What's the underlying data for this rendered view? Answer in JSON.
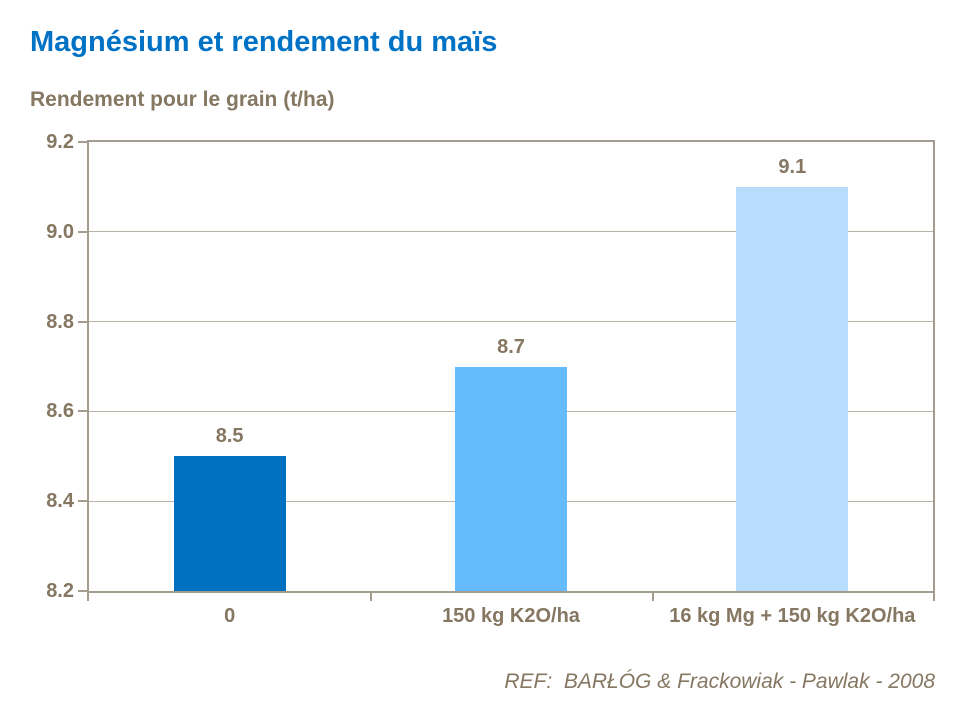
{
  "header": {
    "title": "Magnésium et rendement du maïs",
    "subtitle": "Rendement pour le grain (t/ha)"
  },
  "footer": {
    "reference": "REF:  BARŁÓG & Frackowiak - Pawlak - 2008"
  },
  "colors": {
    "title_blue": "#0072C6",
    "text_brown": "#857761",
    "axis_border": "#A59C90",
    "gridline": "#BCB3A8",
    "bar_dark_blue": "#0070C0",
    "bar_medium_blue": "#66BBFC",
    "bar_light_blue": "#B8DCFC",
    "background": "#FFFFFF"
  },
  "chart_data": {
    "type": "bar",
    "title": "Magnésium et rendement du maïs",
    "ylabel": "Rendement pour le grain (t/ha)",
    "xlabel": "",
    "categories": [
      "0",
      "150 kg K2O/ha",
      "16 kg Mg + 150 kg K2O/ha"
    ],
    "values": [
      8.5,
      8.7,
      9.1
    ],
    "data_labels": [
      "8.5",
      "8.7",
      "9.1"
    ],
    "bar_colors": [
      "#0070C0",
      "#66BBFC",
      "#B8DCFC"
    ],
    "ylim": [
      8.2,
      9.2
    ],
    "ytick_values": [
      8.2,
      8.4,
      8.6,
      8.8,
      9.0,
      9.2
    ],
    "yticks": [
      "8.2",
      "8.4",
      "8.6",
      "8.8",
      "9.0",
      "9.2"
    ],
    "grid": true,
    "legend": false,
    "annotation": "REF:  BARŁÓG & Frackowiak - Pawlak - 2008"
  }
}
